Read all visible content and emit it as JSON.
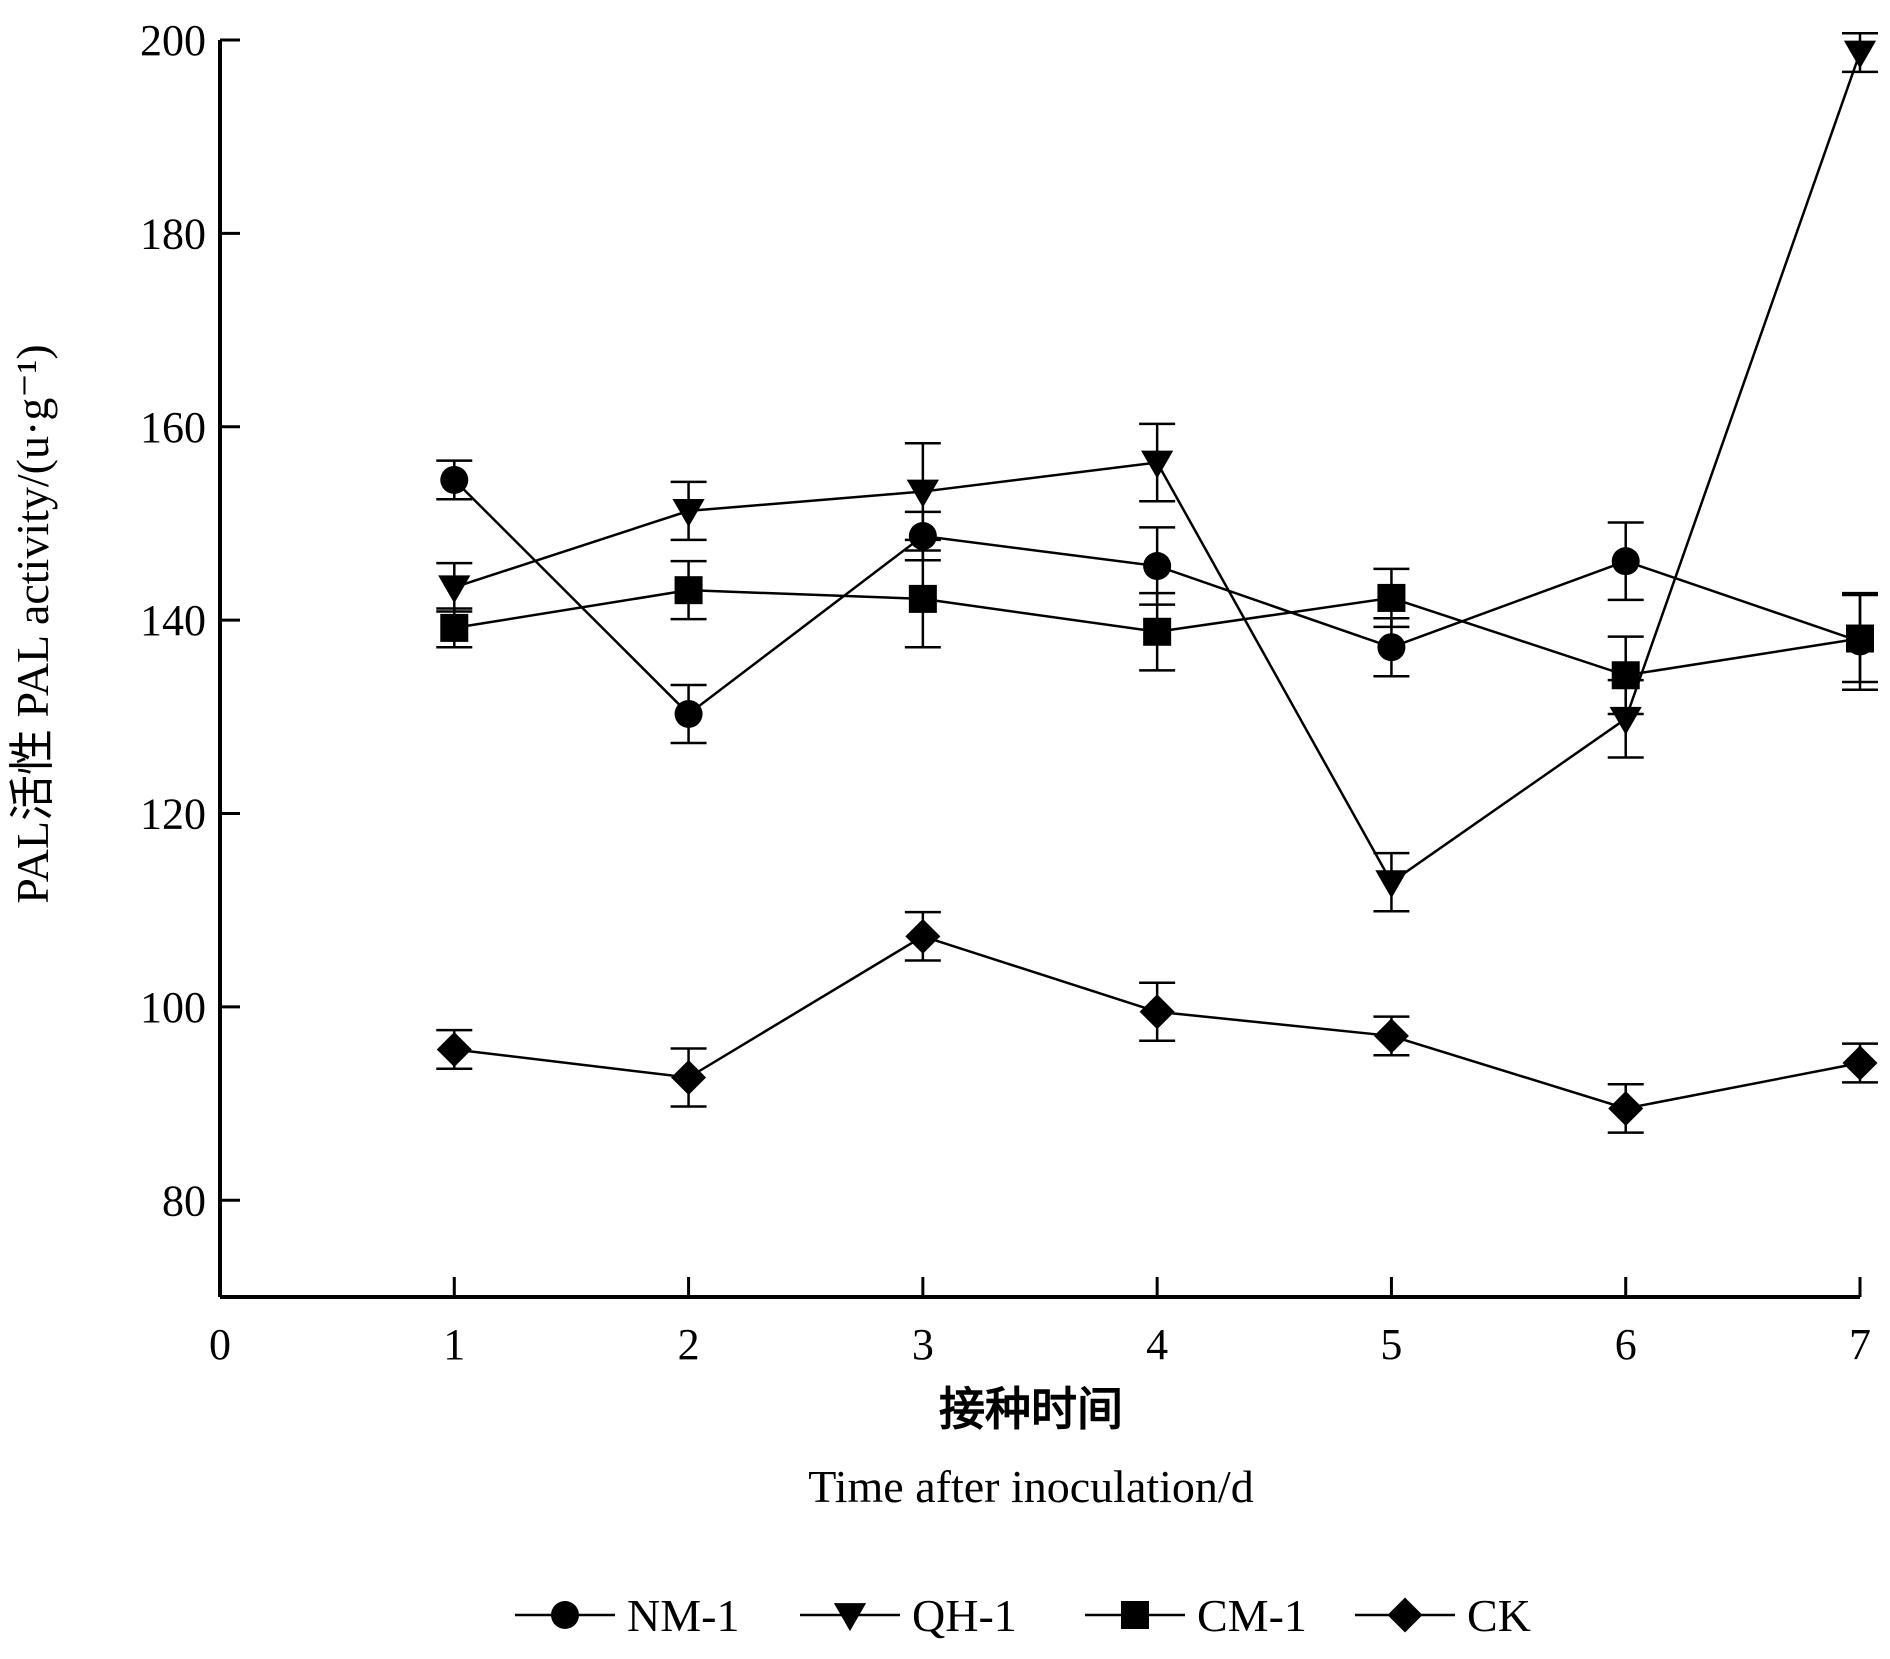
{
  "chart_data": {
    "type": "line",
    "xlabel_cn": "接种时间",
    "xlabel_en": "Time after inoculation/d",
    "ylabel": "PAL活性  PAL activity/(u·g⁻¹)",
    "xlim": [
      0,
      7
    ],
    "ylim": [
      70,
      200
    ],
    "x_ticks": [
      "0",
      "1",
      "2",
      "3",
      "4",
      "5",
      "6",
      "7"
    ],
    "y_ticks": [
      "80",
      "100",
      "120",
      "140",
      "160",
      "180",
      "200"
    ],
    "x": [
      1,
      2,
      3,
      4,
      5,
      6,
      7
    ],
    "series": [
      {
        "name": "NM-1",
        "marker": "circle",
        "values": [
          154.5,
          130.3,
          148.7,
          145.6,
          137.2,
          146.1,
          137.8
        ],
        "errors": [
          2.0,
          3.0,
          2.5,
          4.0,
          3.0,
          4.0,
          5.0
        ]
      },
      {
        "name": "QH-1",
        "marker": "triangle-down",
        "values": [
          143.4,
          151.3,
          153.3,
          156.3,
          112.9,
          129.8,
          198.7
        ],
        "errors": [
          2.5,
          3.0,
          5.0,
          4.0,
          3.0,
          4.0,
          2.0
        ]
      },
      {
        "name": "CM-1",
        "marker": "square",
        "values": [
          139.2,
          143.1,
          142.2,
          138.8,
          142.3,
          134.3,
          138.1
        ],
        "errors": [
          2.0,
          3.0,
          5.0,
          4.0,
          3.0,
          4.0,
          4.5
        ]
      },
      {
        "name": "CK",
        "marker": "diamond",
        "values": [
          95.6,
          92.7,
          107.3,
          99.5,
          97.0,
          89.5,
          94.2
        ],
        "errors": [
          2.0,
          3.0,
          2.5,
          3.0,
          2.0,
          2.5,
          2.0
        ]
      }
    ]
  }
}
